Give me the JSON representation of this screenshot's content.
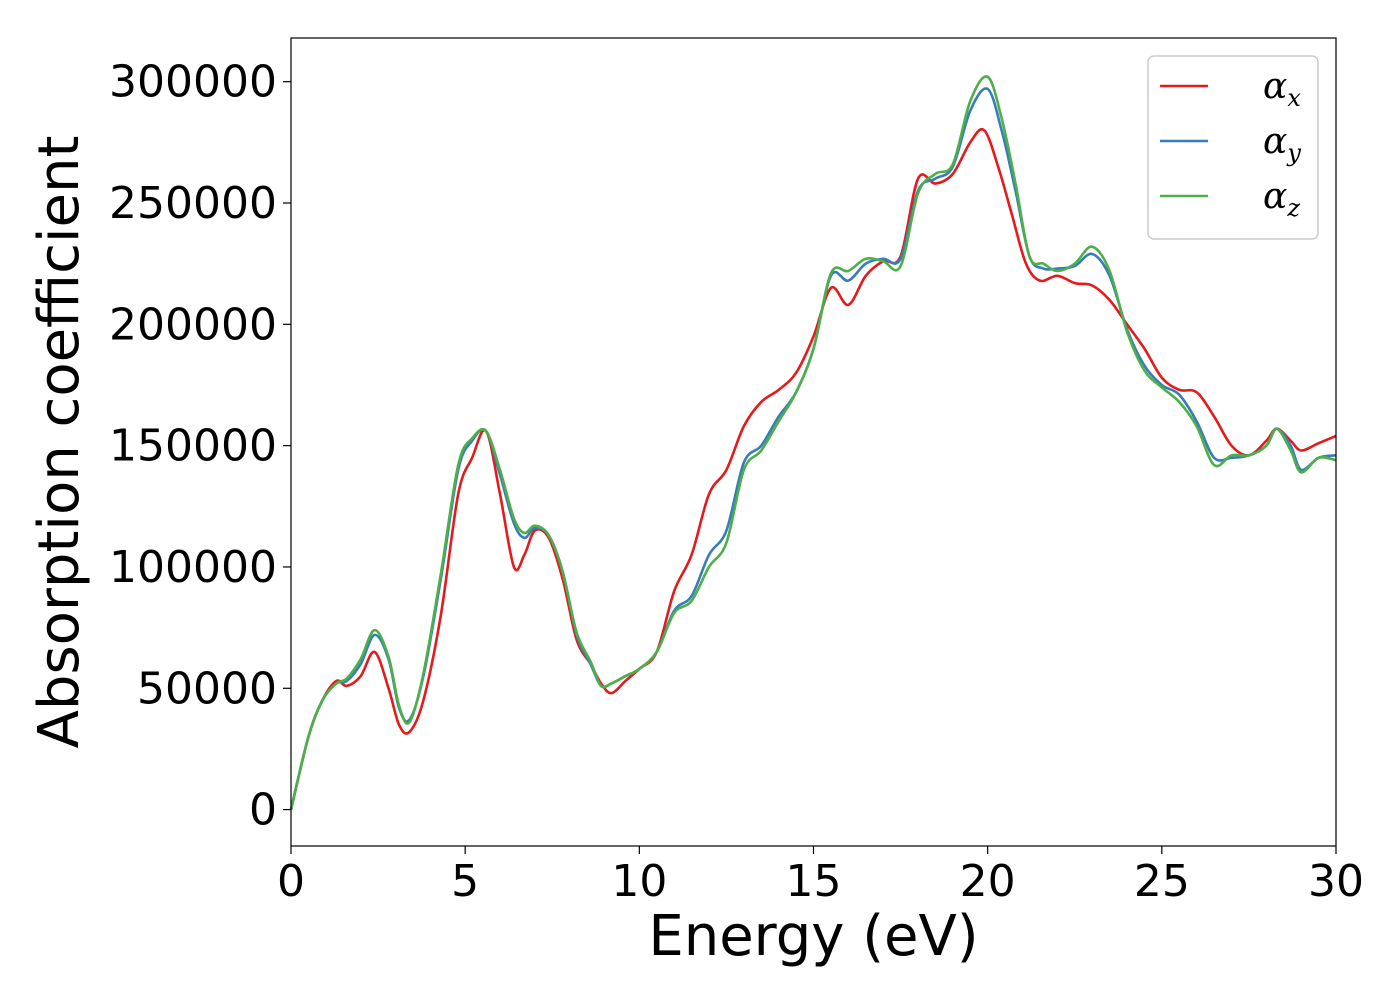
{
  "chart_data": {
    "type": "line",
    "title": "",
    "xlabel": "Energy (eV)",
    "ylabel": "Absorption coefficient",
    "xlim": [
      0,
      30
    ],
    "ylim": [
      -15000,
      318000
    ],
    "xticks": [
      0,
      5,
      10,
      15,
      20,
      25,
      30
    ],
    "xtick_labels": [
      "0",
      "5",
      "10",
      "15",
      "20",
      "25",
      "30"
    ],
    "yticks": [
      0,
      50000,
      100000,
      150000,
      200000,
      250000,
      300000
    ],
    "ytick_labels": [
      "0",
      "50000",
      "100000",
      "150000",
      "200000",
      "250000",
      "300000"
    ],
    "grid": false,
    "legend_position": "top-right",
    "series": [
      {
        "name": "αx",
        "symbol": "α",
        "subscript": "x",
        "color": "#e41a1c",
        "x": [
          0,
          0.5,
          0.9,
          1.3,
          1.6,
          2.0,
          2.4,
          2.8,
          3.1,
          3.4,
          3.8,
          4.3,
          4.8,
          5.2,
          5.6,
          6.0,
          6.4,
          6.7,
          7.0,
          7.4,
          7.8,
          8.2,
          8.6,
          8.9,
          9.2,
          9.6,
          10.0,
          10.5,
          11.0,
          11.5,
          12.0,
          12.5,
          13.0,
          13.5,
          14.0,
          14.5,
          15.0,
          15.5,
          16.0,
          16.5,
          17.0,
          17.5,
          18.0,
          18.5,
          19.0,
          19.5,
          19.9,
          20.3,
          20.7,
          21.1,
          21.5,
          22.0,
          22.5,
          23.0,
          23.5,
          24.0,
          24.5,
          25.0,
          25.5,
          26.0,
          26.5,
          27.0,
          27.5,
          28.0,
          28.3,
          28.7,
          29.0,
          29.5,
          30.0
        ],
        "values": [
          0,
          30000,
          45000,
          53000,
          51000,
          55000,
          65000,
          50000,
          35000,
          32000,
          45000,
          80000,
          130000,
          145000,
          156000,
          130000,
          100000,
          105000,
          115000,
          112000,
          95000,
          70000,
          60000,
          52000,
          48000,
          53000,
          58000,
          65000,
          90000,
          105000,
          130000,
          140000,
          158000,
          168000,
          173000,
          180000,
          195000,
          215000,
          208000,
          220000,
          226000,
          228000,
          260000,
          258000,
          262000,
          275000,
          280000,
          265000,
          245000,
          225000,
          218000,
          220000,
          217000,
          216000,
          210000,
          200000,
          190000,
          178000,
          173000,
          172000,
          162000,
          150000,
          146000,
          152000,
          157000,
          152000,
          148000,
          151000,
          154000
        ]
      },
      {
        "name": "αy",
        "symbol": "α",
        "subscript": "y",
        "color": "#377eb8",
        "x": [
          0,
          0.5,
          0.9,
          1.3,
          1.6,
          2.0,
          2.4,
          2.8,
          3.1,
          3.4,
          3.8,
          4.3,
          4.8,
          5.2,
          5.6,
          6.0,
          6.4,
          6.7,
          7.0,
          7.4,
          7.8,
          8.2,
          8.6,
          8.9,
          9.2,
          9.6,
          10.0,
          10.5,
          11.0,
          11.5,
          12.0,
          12.5,
          13.0,
          13.5,
          14.0,
          14.5,
          15.0,
          15.5,
          16.0,
          16.5,
          17.0,
          17.5,
          18.0,
          18.5,
          19.0,
          19.5,
          20.0,
          20.4,
          20.8,
          21.2,
          21.6,
          22.0,
          22.5,
          23.0,
          23.5,
          24.0,
          24.5,
          25.0,
          25.5,
          26.0,
          26.5,
          27.0,
          27.5,
          28.0,
          28.3,
          28.7,
          29.0,
          29.5,
          30.0
        ],
        "values": [
          0,
          30000,
          45000,
          52000,
          53000,
          60000,
          72000,
          62000,
          42000,
          37000,
          55000,
          95000,
          140000,
          152000,
          156000,
          138000,
          118000,
          112000,
          116000,
          113000,
          98000,
          72000,
          60000,
          51000,
          52000,
          55000,
          58000,
          65000,
          82000,
          88000,
          105000,
          115000,
          143000,
          150000,
          162000,
          172000,
          190000,
          220000,
          218000,
          225000,
          227000,
          227000,
          255000,
          260000,
          265000,
          288000,
          297000,
          280000,
          255000,
          228000,
          223000,
          223000,
          224000,
          229000,
          220000,
          198000,
          183000,
          175000,
          171000,
          160000,
          145000,
          145000,
          146000,
          150000,
          157000,
          150000,
          140000,
          145000,
          146000
        ]
      },
      {
        "name": "αz",
        "symbol": "α",
        "subscript": "z",
        "color": "#4daf4a",
        "x": [
          0,
          0.5,
          0.9,
          1.3,
          1.6,
          2.0,
          2.4,
          2.8,
          3.1,
          3.4,
          3.8,
          4.3,
          4.8,
          5.2,
          5.6,
          6.0,
          6.4,
          6.7,
          7.0,
          7.4,
          7.8,
          8.2,
          8.6,
          8.9,
          9.2,
          9.6,
          10.0,
          10.5,
          11.0,
          11.5,
          12.0,
          12.5,
          13.0,
          13.5,
          14.0,
          14.5,
          15.0,
          15.5,
          16.0,
          16.5,
          17.0,
          17.5,
          18.0,
          18.5,
          19.0,
          19.5,
          20.0,
          20.4,
          20.8,
          21.2,
          21.6,
          22.0,
          22.5,
          23.0,
          23.5,
          24.0,
          24.5,
          25.0,
          25.5,
          26.0,
          26.5,
          27.0,
          27.5,
          28.0,
          28.3,
          28.7,
          29.0,
          29.5,
          30.0
        ],
        "values": [
          0,
          30000,
          45000,
          52000,
          54000,
          62000,
          74000,
          63000,
          43000,
          36000,
          56000,
          97000,
          142000,
          153000,
          156000,
          140000,
          120000,
          114000,
          117000,
          113000,
          98000,
          73000,
          61000,
          51000,
          52000,
          55000,
          58000,
          65000,
          81000,
          86000,
          100000,
          110000,
          140000,
          148000,
          160000,
          172000,
          190000,
          221000,
          222000,
          227000,
          226000,
          224000,
          254000,
          262000,
          266000,
          292000,
          302000,
          285000,
          258000,
          228000,
          225000,
          222000,
          225000,
          232000,
          222000,
          197000,
          181000,
          174000,
          168000,
          158000,
          142000,
          146000,
          146000,
          150000,
          157000,
          148000,
          139000,
          145000,
          144000
        ]
      }
    ]
  }
}
